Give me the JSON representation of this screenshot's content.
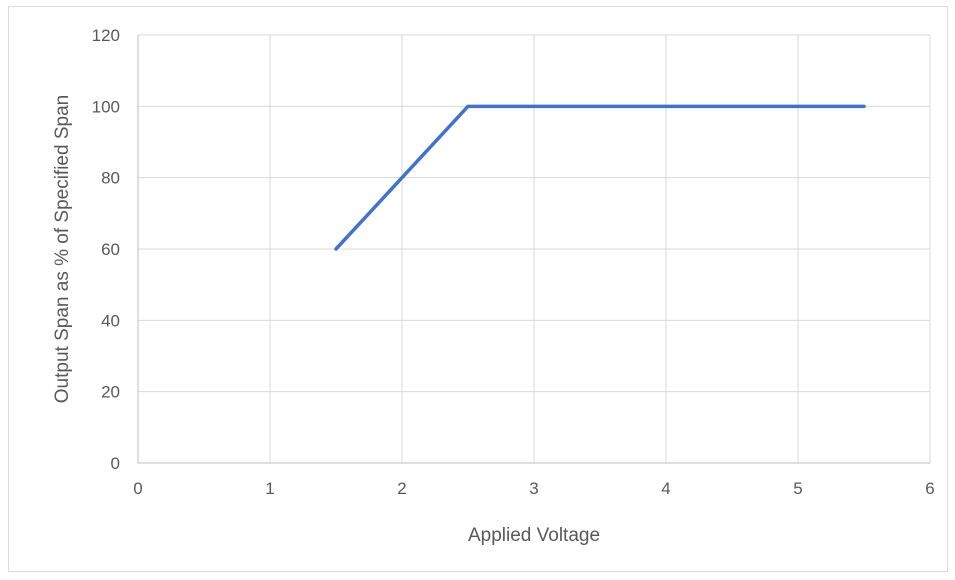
{
  "chart_data": {
    "type": "line",
    "title": "",
    "xlabel": "Applied Voltage",
    "ylabel": "Output Span as % of Specified Span",
    "xlim": [
      0,
      6
    ],
    "ylim": [
      0,
      120
    ],
    "xticks": [
      0,
      1,
      2,
      3,
      4,
      5,
      6
    ],
    "yticks": [
      0,
      20,
      40,
      60,
      80,
      100,
      120
    ],
    "grid": true,
    "legend": "none",
    "series": [
      {
        "color": "#4472c4",
        "x": [
          1.5,
          2.5,
          5.5
        ],
        "y": [
          60,
          100,
          100
        ]
      }
    ]
  }
}
